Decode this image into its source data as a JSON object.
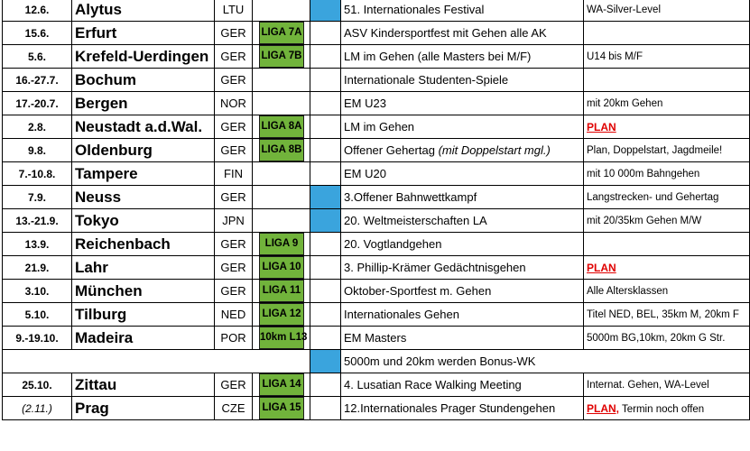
{
  "colors": {
    "liga_badge": "#71b33b",
    "blue_marker": "#3aa4dd",
    "plan_text": "#e00000"
  },
  "rows": [
    {
      "date": "12.6.",
      "city": "Alytus",
      "country": "LTU",
      "liga": "",
      "blue": true,
      "event": "51. Internationales Festival",
      "note": "WA-Silver-Level"
    },
    {
      "date": "15.6.",
      "city": "Erfurt",
      "country": "GER",
      "liga": "LIGA 7A",
      "blue": false,
      "event": "ASV Kindersportfest mit Gehen alle AK",
      "note": ""
    },
    {
      "date": "5.6.",
      "city": "Krefeld-Uerdingen",
      "country": "GER",
      "liga": "LIGA 7B",
      "blue": false,
      "event": "LM im Gehen   (alle Masters bei M/F)",
      "note": "U14 bis M/F"
    },
    {
      "date": "16.-27.7.",
      "city": "Bochum",
      "country": "GER",
      "liga": "",
      "blue": false,
      "event": "Internationale Studenten-Spiele",
      "note": ""
    },
    {
      "date": "17.-20.7.",
      "city": "Bergen",
      "country": "NOR",
      "liga": "",
      "blue": false,
      "event": "EM U23",
      "note": "mit 20km Gehen"
    },
    {
      "date": "2.8.",
      "city": "Neustadt a.d.Wal.",
      "country": "GER",
      "liga": "LIGA 8A",
      "blue": false,
      "event": "LM im Gehen",
      "note_plan": "PLAN",
      "note": ""
    },
    {
      "date": "9.8.",
      "city": "Oldenburg",
      "country": "GER",
      "liga": "LIGA 8B",
      "blue": false,
      "event": "Offener Gehertag",
      "event_suffix": "(mit Doppelstart mgl.)",
      "note": "Plan, Doppelstart, Jagdmeile!"
    },
    {
      "date": "7.-10.8.",
      "city": "Tampere",
      "country": "FIN",
      "liga": "",
      "blue": false,
      "event": "EM U20",
      "note": "mit 10 000m Bahngehen"
    },
    {
      "date": "7.9.",
      "city": "Neuss",
      "country": "GER",
      "liga": "",
      "blue": true,
      "event": "3.Offener Bahnwettkampf",
      "note": "Langstrecken- und Gehertag"
    },
    {
      "date": "13.-21.9.",
      "city": "Tokyo",
      "country": "JPN",
      "liga": "",
      "blue": true,
      "event": "20. Weltmeisterschaften LA",
      "note": "mit 20/35km Gehen M/W"
    },
    {
      "date": "13.9.",
      "city": "Reichenbach",
      "country": "GER",
      "liga": "LIGA 9",
      "blue": false,
      "event": "20. Vogtlandgehen",
      "note": ""
    },
    {
      "date": "21.9.",
      "city": "Lahr",
      "country": "GER",
      "liga": "LIGA 10",
      "blue": false,
      "event": "3. Phillip-Krämer Gedächtnisgehen",
      "note_plan": "PLAN",
      "note": ""
    },
    {
      "date": "3.10.",
      "city": "München",
      "country": "GER",
      "liga": "LIGA 11",
      "blue": false,
      "event": "Oktober-Sportfest m. Gehen",
      "note": "Alle Altersklassen"
    },
    {
      "date": "5.10.",
      "city": "Tilburg",
      "country": "NED",
      "liga": "LIGA 12",
      "blue": false,
      "event": "Internationales Gehen",
      "note": "Titel NED, BEL, 35km M, 20km F"
    },
    {
      "date": "9.-19.10.",
      "city": "Madeira",
      "country": "POR",
      "liga": "10km L13",
      "blue": false,
      "event": "EM Masters",
      "note": "5000m BG,10km, 20km G Str."
    },
    {
      "merged": true,
      "blue": true,
      "event": "5000m und 20km werden Bonus-WK"
    },
    {
      "date": "25.10.",
      "city": "Zittau",
      "country": "GER",
      "liga": "LIGA 14",
      "blue": false,
      "event": "4. Lusatian Race Walking Meeting",
      "note": "Internat. Gehen, WA-Level"
    },
    {
      "date": "(2.11.)",
      "date_italic": true,
      "city": "Prag",
      "country": "CZE",
      "liga": "LIGA 15",
      "blue": false,
      "event": "12.Internationales Prager Stundengehen",
      "note_plan": "PLAN,",
      "note": " Termin noch offen"
    }
  ]
}
